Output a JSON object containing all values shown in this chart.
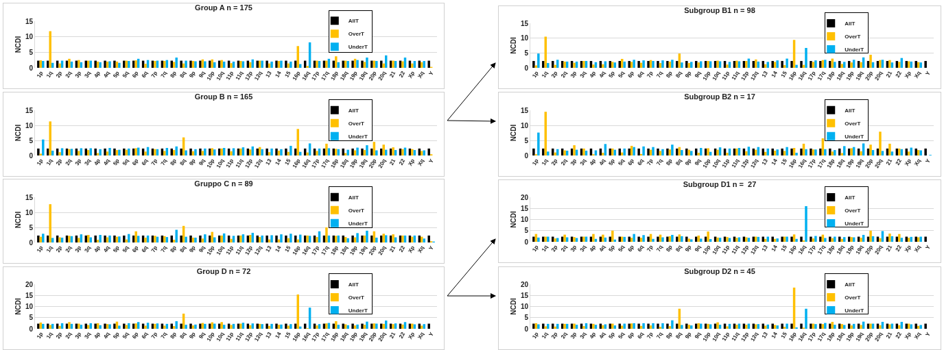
{
  "chart_data": [
    {
      "type": "bar",
      "title": "Group A n = 175",
      "ylabel": "NCDI",
      "categories": [
        "1p",
        "1q",
        "2p",
        "2q",
        "3p",
        "3q",
        "4p",
        "4q",
        "5p",
        "5q",
        "6p",
        "6q",
        "7p",
        "7q",
        "8p",
        "8q",
        "9p",
        "9q",
        "10p",
        "10q",
        "11p",
        "11q",
        "12p",
        "12q",
        "13",
        "14",
        "15",
        "16p",
        "16q",
        "17p",
        "17q",
        "18p",
        "18q",
        "19p",
        "19q",
        "20p",
        "20q",
        "21",
        "22",
        "Xp",
        "Xq",
        "Y"
      ],
      "ylim": [
        0,
        15
      ],
      "yticks": [
        0,
        5,
        10,
        15
      ],
      "grid": "y",
      "legend": "top right",
      "series": [
        {
          "name": "AllT",
          "color": "#000000",
          "values": [
            2.3,
            2.3,
            2.3,
            2.3,
            2.3,
            2.3,
            2.3,
            2.3,
            2.3,
            2.3,
            2.3,
            2.3,
            2.3,
            2.3,
            2.3,
            2.3,
            2.3,
            2.3,
            2.3,
            2.3,
            2.3,
            2.3,
            2.3,
            2.3,
            2.3,
            2.3,
            2.3,
            2.3,
            2.3,
            2.3,
            2.3,
            2.3,
            2.3,
            2.3,
            2.3,
            2.3,
            2.3,
            2.3,
            2.3,
            2.3,
            2.3,
            2.3
          ]
        },
        {
          "name": "OverT",
          "color": "#ffc000",
          "values": [
            2.4,
            11.8,
            1.4,
            2.9,
            2.5,
            2.3,
            2.0,
            2.0,
            2.0,
            2.3,
            2.4,
            1.3,
            2.2,
            2.2,
            1.9,
            1.4,
            2.2,
            2.7,
            2.7,
            2.5,
            1.5,
            2.2,
            1.8,
            2.3,
            1.4,
            2.2,
            1.4,
            7.0,
            0.6,
            2.3,
            2.3,
            3.7,
            2.3,
            2.9,
            1.9,
            2.3,
            1.4,
            2.3,
            2.1,
            1.4,
            1.8,
            0.3
          ]
        },
        {
          "name": "UnderT",
          "color": "#00b0f0",
          "values": [
            2.2,
            1.6,
            2.3,
            2.0,
            1.8,
            2.3,
            1.8,
            2.1,
            1.6,
            2.2,
            2.9,
            2.5,
            2.3,
            2.5,
            3.3,
            2.3,
            2.1,
            2.1,
            1.8,
            2.0,
            2.0,
            2.1,
            2.7,
            2.3,
            2.0,
            2.3,
            2.0,
            1.2,
            8.2,
            2.2,
            2.9,
            1.8,
            2.2,
            2.5,
            3.3,
            2.2,
            4.0,
            2.2,
            3.3,
            2.2,
            2.2,
            null
          ]
        }
      ]
    },
    {
      "type": "bar",
      "title": "Subgroup B1 n = 98",
      "ylabel": "NCDI",
      "categories": [
        "1p",
        "1q",
        "2p",
        "2q",
        "3p",
        "3q",
        "4p",
        "4q",
        "5p",
        "5q",
        "6p",
        "6q",
        "7p",
        "7q",
        "8p",
        "8q",
        "9p",
        "9q",
        "10p",
        "10q",
        "11p",
        "11q",
        "12p",
        "12q",
        "13",
        "14",
        "15",
        "16p",
        "16q",
        "17p",
        "17q",
        "18p",
        "18q",
        "19p",
        "19q",
        "20p",
        "20q",
        "21",
        "22",
        "Xp",
        "Xq",
        "Y"
      ],
      "ylim": [
        0,
        15
      ],
      "yticks": [
        0,
        5,
        10,
        15
      ],
      "grid": "y",
      "legend": "top right",
      "series": [
        {
          "name": "AllT",
          "color": "#000000",
          "values": [
            2.3,
            2.3,
            2.3,
            2.3,
            2.3,
            2.3,
            2.3,
            2.3,
            2.3,
            2.3,
            2.3,
            2.3,
            2.3,
            2.3,
            2.3,
            2.3,
            2.3,
            2.3,
            2.3,
            2.3,
            2.3,
            2.3,
            2.3,
            2.3,
            2.3,
            2.3,
            2.3,
            2.3,
            2.3,
            2.3,
            2.3,
            2.3,
            2.3,
            2.3,
            2.3,
            2.3,
            2.3,
            2.3,
            2.3,
            2.3,
            2.3,
            2.3
          ]
        },
        {
          "name": "OverT",
          "color": "#ffc000",
          "values": [
            0.8,
            10.5,
            1.0,
            2.1,
            1.7,
            2.3,
            1.1,
            1.2,
            2.0,
            3.0,
            2.0,
            1.7,
            2.6,
            1.6,
            2.1,
            4.8,
            1.6,
            1.8,
            2.3,
            2.4,
            1.1,
            2.4,
            2.3,
            2.8,
            1.2,
            2.0,
            0.9,
            9.4,
            1.0,
            2.0,
            2.6,
            3.1,
            1.3,
            1.8,
            1.9,
            4.4,
            2.6,
            2.6,
            2.0,
            2.2,
            1.9,
            0
          ]
        },
        {
          "name": "UnderT",
          "color": "#00b0f0",
          "values": [
            4.8,
            1.6,
            2.7,
            2.1,
            2.1,
            2.3,
            1.9,
            2.2,
            1.8,
            2.1,
            2.7,
            2.5,
            2.3,
            2.5,
            2.7,
            1.8,
            2.0,
            2.2,
            2.2,
            2.2,
            2.0,
            2.2,
            3.1,
            2.1,
            2.0,
            2.5,
            3.1,
            1.0,
            6.7,
            2.5,
            2.7,
            2.0,
            2.0,
            2.7,
            3.5,
            1.9,
            2.7,
            1.8,
            3.3,
            2.1,
            1.8,
            0
          ]
        }
      ]
    },
    {
      "type": "bar",
      "title": "Group B n = 165",
      "ylabel": "NCDI",
      "categories": [
        "1p",
        "1q",
        "2p",
        "2q",
        "3p",
        "3q",
        "4p",
        "4q",
        "5p",
        "5q",
        "6p",
        "6q",
        "7p",
        "7q",
        "8p",
        "8q",
        "9p",
        "9q",
        "10p",
        "10q",
        "11p",
        "11q",
        "12p",
        "12q",
        "13",
        "14",
        "15",
        "16p",
        "16q",
        "17p",
        "17q",
        "18p",
        "18q",
        "19p",
        "19q",
        "20p",
        "20q",
        "21",
        "22",
        "Xp",
        "Xq",
        "Y"
      ],
      "ylim": [
        0,
        15
      ],
      "yticks": [
        0,
        5,
        10,
        15
      ],
      "grid": "y",
      "legend": "top right",
      "series": [
        {
          "name": "AllT",
          "color": "#000000",
          "values": [
            2.3,
            2.3,
            2.3,
            2.3,
            2.3,
            2.3,
            2.3,
            2.3,
            2.3,
            2.3,
            2.3,
            2.3,
            2.3,
            2.3,
            2.3,
            2.3,
            2.3,
            2.3,
            2.3,
            2.3,
            2.3,
            2.3,
            2.3,
            2.3,
            2.3,
            2.3,
            2.3,
            2.3,
            2.3,
            2.3,
            2.3,
            2.3,
            2.3,
            2.3,
            2.3,
            2.3,
            2.3,
            2.3,
            2.3,
            2.3,
            2.3,
            2.3
          ]
        },
        {
          "name": "OverT",
          "color": "#ffc000",
          "values": [
            0.6,
            11.3,
            1.1,
            2.1,
            1.5,
            1.8,
            0.8,
            1.3,
            1.8,
            1.9,
            2.4,
            1.3,
            2.1,
            1.5,
            1.8,
            6.0,
            1.4,
            1.5,
            2.4,
            2.3,
            1.4,
            2.3,
            2.0,
            2.8,
            1.1,
            1.6,
            1.2,
            8.8,
            1.0,
            1.5,
            3.9,
            2.2,
            0.8,
            1.7,
            1.8,
            4.5,
            3.6,
            2.7,
            2.1,
            2.1,
            1.5,
            0.4
          ]
        },
        {
          "name": "UnderT",
          "color": "#00b0f0",
          "values": [
            5.3,
            1.6,
            2.4,
            2.2,
            2.4,
            2.4,
            2.1,
            2.5,
            1.9,
            2.3,
            2.6,
            2.8,
            2.1,
            2.5,
            3.0,
            1.7,
            2.1,
            2.3,
            2.0,
            2.5,
            2.4,
            2.7,
            3.0,
            2.1,
            2.3,
            2.1,
            3.2,
            1.2,
            4.0,
            2.3,
            2.4,
            2.1,
            1.9,
            2.6,
            3.4,
            1.7,
            1.9,
            1.8,
            2.6,
            1.8,
            1.7,
            null
          ]
        }
      ]
    },
    {
      "type": "bar",
      "title": "Subgroup B2 n = 17",
      "ylabel": "NCDI",
      "categories": [
        "1p",
        "1q",
        "2p",
        "2q",
        "3p",
        "3q",
        "4p",
        "4q",
        "5p",
        "5q",
        "6p",
        "6q",
        "7p",
        "7q",
        "8p",
        "8q",
        "9p",
        "9q",
        "10p",
        "10q",
        "11p",
        "11q",
        "12p",
        "12q",
        "13",
        "14",
        "15",
        "16p",
        "16q",
        "17p",
        "17q",
        "18p",
        "18q",
        "19p",
        "19q",
        "20p",
        "20q",
        "21",
        "22",
        "Xp",
        "Xq",
        "Y"
      ],
      "ylim": [
        0,
        15
      ],
      "yticks": [
        0,
        5,
        10,
        15
      ],
      "grid": "y",
      "legend": "top right",
      "series": [
        {
          "name": "AllT",
          "color": "#000000",
          "values": [
            2.3,
            2.3,
            2.3,
            2.3,
            2.3,
            2.3,
            2.3,
            2.3,
            2.3,
            2.3,
            2.3,
            2.3,
            2.3,
            2.3,
            2.3,
            2.3,
            2.3,
            2.3,
            2.3,
            2.3,
            2.3,
            2.3,
            2.3,
            2.3,
            2.3,
            2.3,
            2.3,
            2.3,
            2.3,
            2.3,
            2.3,
            2.3,
            2.3,
            2.3,
            2.3,
            2.3,
            2.3,
            2.3,
            2.3,
            2.3,
            2.3,
            2.3
          ]
        },
        {
          "name": "OverT",
          "color": "#ffc000",
          "values": [
            0.4,
            14.5,
            1.0,
            1.7,
            3.4,
            2.3,
            0.4,
            0.9,
            2.3,
            1.0,
            3.2,
            0.5,
            1.9,
            1.5,
            2.0,
            2.8,
            1.9,
            0.9,
            2.4,
            1.9,
            0.9,
            2.3,
            1.4,
            1.9,
            1.2,
            1.6,
            1.5,
            2.5,
            3.9,
            2.0,
            5.7,
            1.3,
            0.8,
            2.4,
            1.4,
            3.6,
            7.9,
            3.9,
            2.3,
            1.3,
            1.8,
            0
          ]
        },
        {
          "name": "UnderT",
          "color": "#00b0f0",
          "values": [
            7.6,
            1.3,
            2.1,
            1.6,
            1.9,
            1.6,
            1.7,
            3.8,
            1.9,
            2.3,
            2.8,
            3.0,
            2.8,
            2.1,
            3.6,
            1.8,
            1.5,
            2.5,
            1.2,
            2.7,
            2.3,
            2.5,
            2.9,
            2.8,
            2.3,
            2.0,
            2.8,
            0.9,
            2.1,
            2.0,
            2.1,
            1.8,
            3.1,
            2.8,
            4.0,
            1.8,
            1.5,
            1.3,
            2.1,
            2.6,
            1.7,
            0.2
          ]
        }
      ]
    },
    {
      "type": "bar",
      "title": "Gruppo C n = 89",
      "ylabel": "NCDI",
      "categories": [
        "1p",
        "1q",
        "2p",
        "2q",
        "3p",
        "3q",
        "4p",
        "4q",
        "5p",
        "5q",
        "6p",
        "6q",
        "7p",
        "7q",
        "8p",
        "8q",
        "9p",
        "9q",
        "10p",
        "10q",
        "11p",
        "11q",
        "12p",
        "12q",
        "13",
        "14",
        "15",
        "16p",
        "16q",
        "17p",
        "17q",
        "18p",
        "18q",
        "19p",
        "19q",
        "20p",
        "20q",
        "21",
        "22",
        "Xp",
        "Xq",
        "Y"
      ],
      "ylim": [
        0,
        15
      ],
      "yticks": [
        0,
        5,
        10,
        15
      ],
      "grid": "y",
      "legend": "top right",
      "series": [
        {
          "name": "AllT",
          "color": "#000000",
          "values": [
            2.3,
            2.3,
            2.3,
            2.3,
            2.3,
            2.3,
            2.3,
            2.3,
            2.3,
            2.3,
            2.3,
            2.3,
            2.3,
            2.3,
            2.3,
            2.3,
            2.3,
            2.3,
            2.3,
            2.3,
            2.3,
            2.3,
            2.3,
            2.3,
            2.3,
            2.3,
            2.3,
            2.3,
            2.3,
            2.3,
            2.3,
            2.3,
            2.3,
            2.3,
            2.3,
            2.3,
            2.3,
            2.3,
            2.3,
            2.3,
            2.3,
            2.3
          ]
        },
        {
          "name": "OverT",
          "color": "#ffc000",
          "values": [
            1.9,
            12.7,
            1.7,
            2.2,
            1.5,
            2.5,
            0.9,
            1.7,
            1.9,
            1.0,
            3.7,
            1.6,
            2.2,
            2.1,
            0.9,
            5.5,
            1.6,
            1.3,
            3.5,
            2.3,
            1.2,
            2.3,
            2.5,
            1.8,
            1.0,
            1.0,
            1.4,
            1.0,
            2.3,
            1.8,
            5.0,
            2.2,
            1.8,
            1.7,
            2.3,
            3.7,
            2.9,
            2.7,
            2.3,
            1.9,
            1.9,
            0.4
          ]
        },
        {
          "name": "UnderT",
          "color": "#00b0f0",
          "values": [
            2.9,
            1.5,
            1.6,
            2.1,
            2.7,
            1.7,
            2.5,
            2.3,
            2.0,
            2.8,
            2.2,
            2.3,
            1.9,
            1.8,
            4.2,
            1.9,
            1.6,
            2.7,
            1.7,
            3.0,
            2.2,
            2.7,
            3.2,
            2.3,
            2.4,
            2.7,
            2.9,
            2.6,
            2.2,
            3.7,
            2.3,
            2.3,
            1.4,
            3.1,
            3.9,
            1.6,
            2.4,
            1.7,
            2.3,
            2.3,
            1.3,
            0.3
          ]
        }
      ]
    },
    {
      "type": "bar",
      "title": "Subgroup D1 n =  27",
      "ylabel": "NCDI",
      "categories": [
        "1p",
        "1q",
        "2p",
        "2q",
        "3p",
        "3q",
        "4p",
        "4q",
        "5p",
        "5q",
        "6p",
        "6q",
        "7p",
        "7q",
        "8p",
        "8q",
        "9p",
        "9q",
        "10p",
        "10q",
        "11p",
        "11q",
        "12p",
        "12q",
        "13",
        "14",
        "15",
        "16p",
        "16q",
        "17p",
        "17q",
        "18p",
        "18q",
        "19p",
        "19q",
        "20p",
        "20q",
        "21",
        "22",
        "Xp",
        "Xq",
        "Y"
      ],
      "ylim": [
        0,
        20
      ],
      "yticks": [
        0,
        5,
        10,
        15,
        20
      ],
      "grid": "y",
      "legend": "top right",
      "series": [
        {
          "name": "AllT",
          "color": "#000000",
          "values": [
            2.3,
            2.3,
            2.3,
            2.3,
            2.3,
            2.3,
            2.3,
            2.3,
            2.3,
            2.3,
            2.3,
            2.3,
            2.3,
            2.3,
            2.3,
            2.3,
            2.3,
            2.3,
            2.3,
            2.3,
            2.3,
            2.3,
            2.3,
            2.3,
            2.3,
            2.3,
            2.3,
            2.3,
            2.3,
            2.3,
            2.3,
            2.3,
            2.3,
            2.3,
            2.3,
            2.3,
            2.3,
            2.3,
            2.3,
            2.3,
            2.3,
            2.3
          ]
        },
        {
          "name": "OverT",
          "color": "#ffc000",
          "values": [
            3.5,
            2.3,
            1.5,
            3.2,
            2.1,
            2.3,
            3.5,
            3.2,
            5.0,
            2.3,
            1.8,
            1.8,
            3.5,
            3.2,
            2.5,
            3.3,
            1.4,
            2.8,
            4.6,
            1.9,
            2.1,
            1.8,
            2.0,
            2.3,
            1.3,
            1.3,
            2.3,
            3.3,
            0.6,
            1.5,
            3.2,
            1.6,
            1.3,
            2.1,
            1.8,
            5.0,
            1.6,
            3.7,
            3.5,
            1.8,
            2.0,
            0
          ]
        },
        {
          "name": "UnderT",
          "color": "#00b0f0",
          "values": [
            1.9,
            2.3,
            1.7,
            2.0,
            1.7,
            2.3,
            1.3,
            1.9,
            1.0,
            2.2,
            3.5,
            3.0,
            1.3,
            2.0,
            3.1,
            2.5,
            1.1,
            1.4,
            1.2,
            1.8,
            1.7,
            2.0,
            1.8,
            2.2,
            2.3,
            1.5,
            2.3,
            1.3,
            16.0,
            2.6,
            1.7,
            2.3,
            2.1,
            2.0,
            3.1,
            2.5,
            4.8,
            2.5,
            1.8,
            2.2,
            2.3,
            0
          ]
        }
      ]
    },
    {
      "type": "bar",
      "title": "Group D n = 72",
      "ylabel": "NCDI",
      "categories": [
        "1p",
        "1q",
        "2p",
        "2q",
        "3p",
        "3q",
        "4p",
        "4q",
        "5p",
        "5q",
        "6p",
        "6q",
        "7p",
        "7q",
        "8p",
        "8q",
        "9p",
        "9q",
        "10p",
        "10q",
        "11p",
        "11q",
        "12p",
        "12q",
        "13",
        "14",
        "15",
        "16p",
        "16q",
        "17p",
        "17q",
        "18p",
        "18q",
        "19p",
        "19q",
        "20p",
        "20q",
        "21",
        "22",
        "Xp",
        "Xq",
        "Y"
      ],
      "ylim": [
        0,
        20
      ],
      "yticks": [
        0,
        5,
        10,
        15,
        20
      ],
      "grid": "y",
      "legend": "top right",
      "series": [
        {
          "name": "AllT",
          "color": "#000000",
          "values": [
            2.3,
            2.3,
            2.3,
            2.3,
            2.3,
            2.3,
            2.3,
            2.3,
            2.3,
            2.3,
            2.3,
            2.3,
            2.3,
            2.3,
            2.3,
            2.3,
            2.3,
            2.3,
            2.3,
            2.3,
            2.3,
            2.3,
            2.3,
            2.3,
            2.3,
            2.3,
            2.3,
            2.3,
            2.3,
            2.3,
            2.3,
            2.3,
            2.3,
            2.3,
            2.3,
            2.3,
            2.3,
            2.3,
            2.3,
            2.3,
            2.3,
            2.3
          ]
        },
        {
          "name": "OverT",
          "color": "#ffc000",
          "values": [
            2.8,
            1.7,
            1.3,
            3.0,
            2.3,
            1.7,
            2.5,
            2.1,
            3.2,
            1.7,
            2.4,
            1.4,
            2.2,
            1.4,
            1.2,
            6.8,
            1.5,
            2.6,
            2.9,
            3.0,
            1.7,
            2.3,
            1.6,
            2.2,
            1.3,
            1.8,
            1.4,
            15.4,
            0.3,
            1.5,
            2.4,
            3.4,
            2.0,
            1.5,
            1.8,
            2.4,
            2.2,
            2.1,
            1.9,
            2.3,
            1.4,
            null
          ]
        },
        {
          "name": "UnderT",
          "color": "#00b0f0",
          "values": [
            2.2,
            2.2,
            2.5,
            2.2,
            1.8,
            2.5,
            1.6,
            2.0,
            1.4,
            2.5,
            3.0,
            2.7,
            2.4,
            2.2,
            3.4,
            1.8,
            1.9,
            2.2,
            2.3,
            1.8,
            2.2,
            2.7,
            2.4,
            2.1,
            2.2,
            1.9,
            2.1,
            1.0,
            9.5,
            2.1,
            2.6,
            1.8,
            1.6,
            1.9,
            3.2,
            2.3,
            3.7,
            2.4,
            3.0,
            2.0,
            2.1,
            null
          ]
        }
      ]
    },
    {
      "type": "bar",
      "title": "Subgroup D2 n = 45",
      "ylabel": "NCDI",
      "categories": [
        "1p",
        "1q",
        "2p",
        "2q",
        "3p",
        "3q",
        "4p",
        "4q",
        "5p",
        "5q",
        "6p",
        "6q",
        "7p",
        "7q",
        "8p",
        "8q",
        "9p",
        "9q",
        "10p",
        "10q",
        "11p",
        "11q",
        "12p",
        "12q",
        "13",
        "14",
        "15",
        "16p",
        "16q",
        "17p",
        "17q",
        "18p",
        "18q",
        "19p",
        "19q",
        "20p",
        "20q",
        "21",
        "22",
        "Xp",
        "Xq",
        "Y"
      ],
      "ylim": [
        0,
        20
      ],
      "yticks": [
        0,
        5,
        10,
        15,
        20
      ],
      "grid": "y",
      "legend": "top right",
      "series": [
        {
          "name": "AllT",
          "color": "#000000",
          "values": [
            2.3,
            2.3,
            2.3,
            2.3,
            2.3,
            2.3,
            2.3,
            2.3,
            2.3,
            2.3,
            2.3,
            2.3,
            2.3,
            2.3,
            2.3,
            2.3,
            2.3,
            2.3,
            2.3,
            2.3,
            2.3,
            2.3,
            2.3,
            2.3,
            2.3,
            2.3,
            2.3,
            2.3,
            2.3,
            2.3,
            2.3,
            2.3,
            2.3,
            2.3,
            2.3,
            2.3,
            2.3,
            2.3,
            2.3,
            2.3,
            2.3,
            2.3
          ]
        },
        {
          "name": "OverT",
          "color": "#ffc000",
          "values": [
            2.5,
            1.1,
            1.0,
            2.2,
            2.3,
            1.2,
            2.2,
            1.6,
            2.3,
            1.4,
            2.4,
            1.3,
            1.5,
            0.9,
            1.2,
            9.0,
            1.8,
            2.5,
            2.2,
            2.9,
            1.1,
            1.8,
            1.8,
            2.0,
            1.4,
            1.7,
            0.9,
            18.5,
            0.5,
            2.3,
            2.1,
            3.1,
            2.1,
            1.5,
            1.7,
            2.3,
            1.6,
            2.0,
            1.6,
            2.3,
            1.3,
            0
          ]
        },
        {
          "name": "UnderT",
          "color": "#00b0f0",
          "values": [
            2.0,
            2.2,
            2.2,
            2.2,
            1.8,
            2.5,
            1.8,
            2.0,
            1.5,
            2.3,
            2.5,
            2.5,
            2.5,
            2.5,
            3.8,
            1.7,
            1.5,
            2.3,
            2.0,
            1.8,
            2.2,
            2.3,
            2.3,
            2.1,
            1.9,
            1.5,
            2.3,
            0.6,
            9.0,
            2.1,
            2.6,
            1.8,
            1.7,
            2.2,
            3.2,
            2.3,
            3.1,
            2.3,
            3.1,
            2.0,
            1.7,
            0
          ]
        }
      ]
    }
  ]
}
